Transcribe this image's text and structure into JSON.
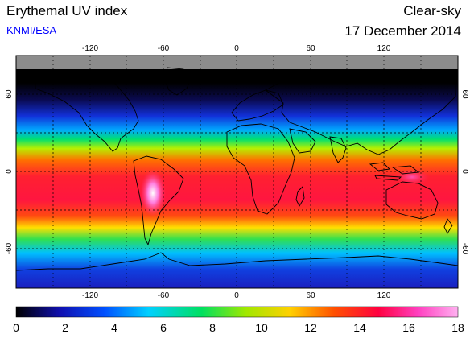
{
  "header": {
    "title": "Erythemal UV index",
    "credit": "KNMI/ESA",
    "sky_condition": "Clear-sky",
    "date": "17 December 2014"
  },
  "map": {
    "projection": "equirectangular",
    "lon_range": [
      -180,
      180
    ],
    "lat_range": [
      -90,
      90
    ],
    "grid": "dotted, every 30 degrees",
    "lon_ticks": [
      "-120",
      "-60",
      "0",
      "60",
      "120"
    ],
    "lat_ticks": [
      "60",
      "0",
      "-60"
    ],
    "no_data_color": "#8c8c8c",
    "no_data_region": "north of about 77N (polar night)",
    "features": [
      "coastlines"
    ],
    "uv_index_by_latitude_zonal_approx": [
      {
        "lat": 75,
        "uv": 0
      },
      {
        "lat": 60,
        "uv": 0.5
      },
      {
        "lat": 45,
        "uv": 3
      },
      {
        "lat": 30,
        "uv": 7
      },
      {
        "lat": 15,
        "uv": 11
      },
      {
        "lat": 0,
        "uv": 13
      },
      {
        "lat": -15,
        "uv": 14
      },
      {
        "lat": -30,
        "uv": 13
      },
      {
        "lat": -45,
        "uv": 10
      },
      {
        "lat": -60,
        "uv": 6
      },
      {
        "lat": -75,
        "uv": 4
      },
      {
        "lat": -90,
        "uv": 3
      }
    ],
    "max_region": "Andes / Altiplano, South America (UV above 16)"
  },
  "colorbar": {
    "min": 0,
    "max": 18,
    "labels": [
      "0",
      "2",
      "4",
      "6",
      "8",
      "10",
      "12",
      "14",
      "16",
      "18"
    ],
    "colors": [
      "#000000",
      "#1010b0",
      "#0050ff",
      "#00d0ff",
      "#00e060",
      "#a0e800",
      "#ffd000",
      "#ff5000",
      "#ff0040",
      "#ff40c0",
      "#ffb0f0"
    ]
  }
}
